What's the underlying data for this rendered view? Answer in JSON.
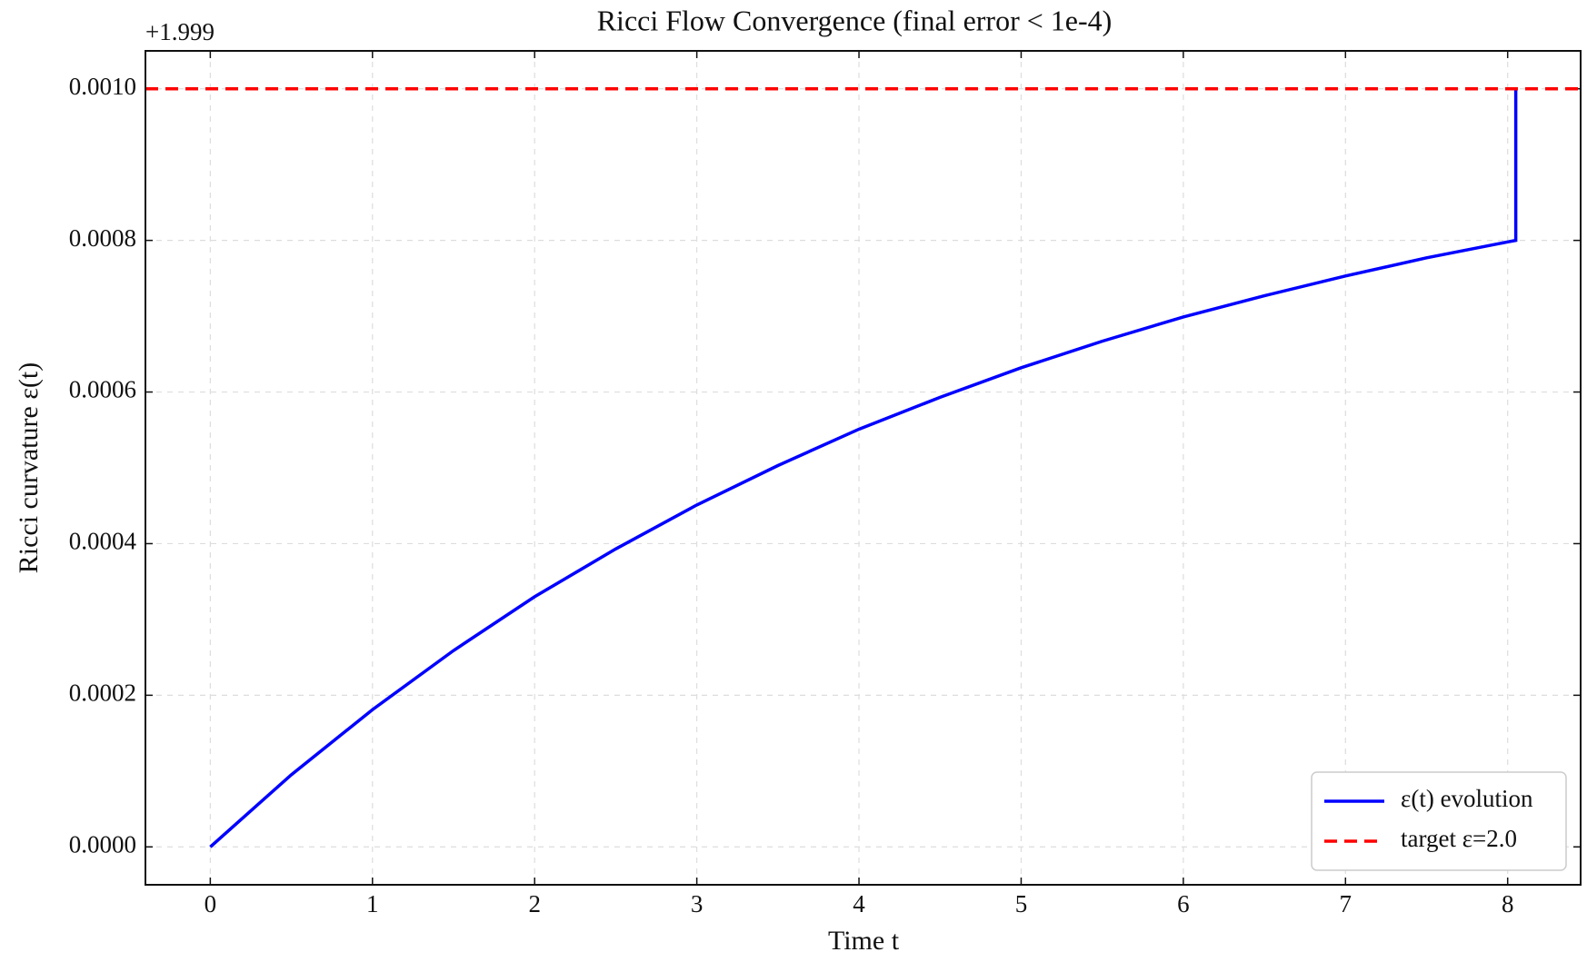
{
  "chart_data": {
    "type": "line",
    "title": "Ricci Flow Convergence (final error < 1e-4)",
    "xlabel": "Time t",
    "ylabel": "Ricci curvature ε(t)",
    "y_offset": "+1.999",
    "series": [
      {
        "name": "ε(t) evolution",
        "color": "#0000ff",
        "x": [
          0,
          0.5,
          1,
          1.5,
          2,
          2.5,
          3,
          3.5,
          4,
          4.5,
          5,
          5.5,
          6,
          6.5,
          7,
          7.5,
          8,
          8.05,
          8.05
        ],
        "values": [
          0,
          9.52e-05,
          0.000181,
          0.000259,
          0.00033,
          0.000393,
          0.000451,
          0.000503,
          0.000551,
          0.000593,
          0.000632,
          0.000667,
          0.000699,
          0.000727,
          0.000753,
          0.000777,
          0.000798,
          0.0008,
          0.001
        ]
      }
    ],
    "hline": {
      "name": "target ε=2.0",
      "color": "#ff0000",
      "value": 0.001
    },
    "xlim": [
      -0.4,
      8.45
    ],
    "ylim": [
      -5e-05,
      0.00105
    ],
    "xticks": [
      0,
      1,
      2,
      3,
      4,
      5,
      6,
      7,
      8
    ],
    "yticks": [
      {
        "value": 0,
        "label": "0.0000"
      },
      {
        "value": 0.0002,
        "label": "0.0002"
      },
      {
        "value": 0.0004,
        "label": "0.0004"
      },
      {
        "value": 0.0006,
        "label": "0.0006"
      },
      {
        "value": 0.0008,
        "label": "0.0008"
      },
      {
        "value": 0.001,
        "label": "0.0010"
      }
    ],
    "grid": true,
    "legend": "lower right"
  }
}
